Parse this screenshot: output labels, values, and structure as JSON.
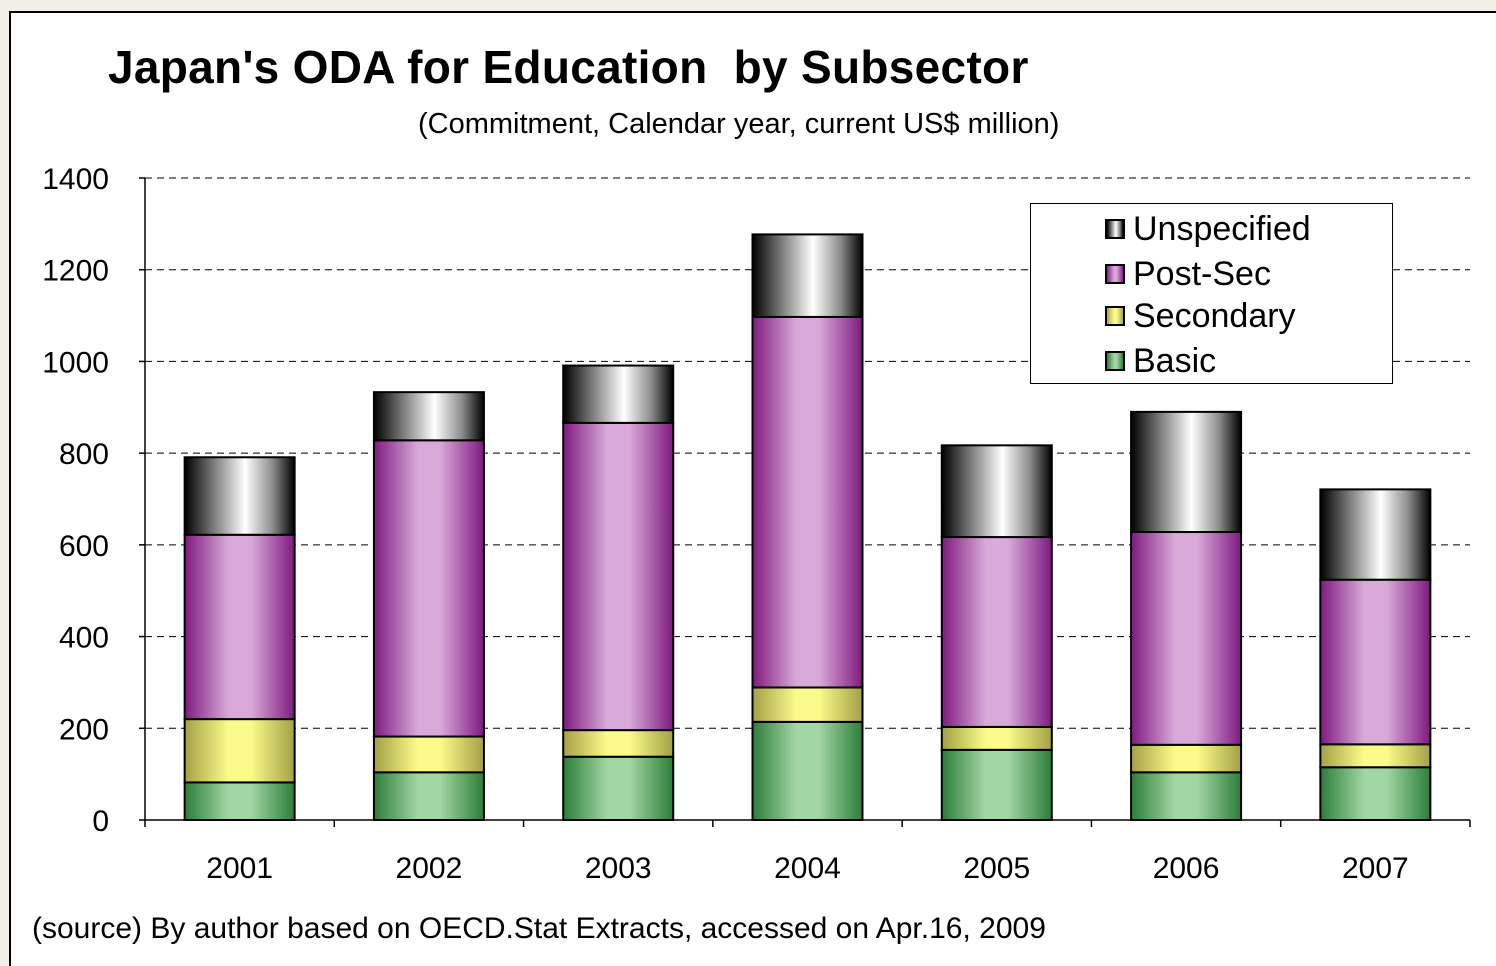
{
  "chart_data": {
    "type": "bar",
    "stacked": true,
    "title": "Japan's ODA for Education  by Subsector",
    "subtitle": "(Commitment, Calendar year, current US$ million)",
    "categories": [
      "2001",
      "2002",
      "2003",
      "2004",
      "2005",
      "2006",
      "2007"
    ],
    "series": [
      {
        "name": "Basic",
        "values": [
          82,
          104,
          138,
          214,
          153,
          104,
          115
        ],
        "color": "#6fb873"
      },
      {
        "name": "Secondary",
        "values": [
          138,
          78,
          58,
          75,
          50,
          60,
          50
        ],
        "color": "#f4f37a"
      },
      {
        "name": "Post-Sec",
        "values": [
          402,
          646,
          670,
          808,
          414,
          464,
          359
        ],
        "color": "#c47ec6"
      },
      {
        "name": "Unspecified",
        "values": [
          169,
          105,
          125,
          180,
          200,
          262,
          197
        ],
        "color": "#9a9a9a"
      }
    ],
    "legend_order": [
      "Unspecified",
      "Post-Sec",
      "Secondary",
      "Basic"
    ],
    "yticks": [
      "0",
      "200",
      "400",
      "600",
      "800",
      "1000",
      "1200",
      "1400"
    ],
    "ylim": [
      0,
      1400
    ],
    "grid": "horizontal dashed",
    "legend_position": "top-right"
  },
  "source_note": "(source) By author based on OECD.Stat Extracts, accessed on Apr.16, 2009"
}
